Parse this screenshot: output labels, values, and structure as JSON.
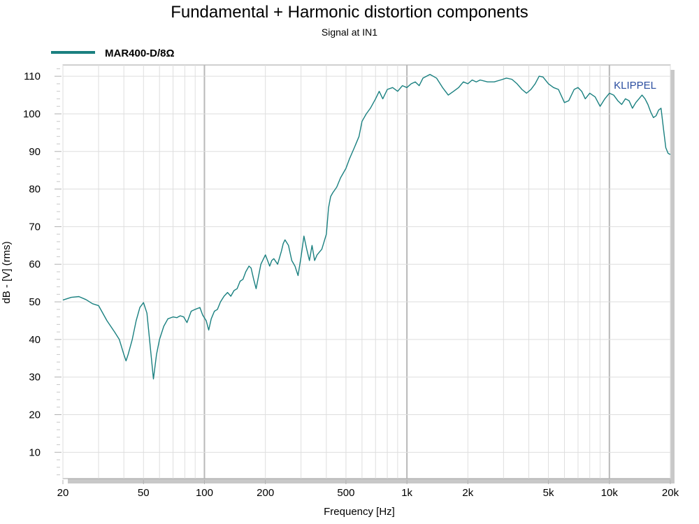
{
  "chart_data": {
    "type": "line",
    "title": "Fundamental + Harmonic distortion components",
    "subtitle": "Signal at IN1",
    "xlabel": "Frequency [Hz]",
    "ylabel": "dB - [V]  (rms)",
    "x_scale": "log",
    "xlim": [
      20,
      20000
    ],
    "ylim": [
      3,
      113
    ],
    "x_ticks": [
      20,
      50,
      100,
      200,
      500,
      1000,
      2000,
      5000,
      10000,
      20000
    ],
    "x_tick_labels": [
      "20",
      "50",
      "100",
      "200",
      "500",
      "1k",
      "2k",
      "5k",
      "10k",
      "20k"
    ],
    "y_ticks": [
      10,
      20,
      30,
      40,
      50,
      60,
      70,
      80,
      90,
      100,
      110
    ],
    "y_tick_labels": [
      "10",
      "20",
      "30",
      "40",
      "50",
      "60",
      "70",
      "80",
      "90",
      "100",
      "110"
    ],
    "grid": true,
    "legend_position": "top-left",
    "watermark": "KLIPPEL",
    "series": [
      {
        "name": "MAR400-D/8Ω",
        "color": "#1a8080",
        "x": [
          20,
          22,
          24,
          26,
          28,
          30,
          33,
          36,
          38,
          40,
          41,
          42,
          44,
          46,
          48,
          50,
          52,
          54,
          56,
          58,
          60,
          63,
          66,
          70,
          73,
          76,
          79,
          82,
          86,
          90,
          95,
          98,
          102,
          105,
          108,
          112,
          116,
          120,
          125,
          130,
          135,
          140,
          145,
          150,
          155,
          160,
          166,
          170,
          175,
          180,
          190,
          200,
          205,
          210,
          215,
          220,
          230,
          240,
          245,
          250,
          260,
          270,
          280,
          290,
          300,
          310,
          320,
          330,
          340,
          350,
          360,
          380,
          400,
          410,
          420,
          430,
          450,
          470,
          500,
          520,
          550,
          580,
          600,
          630,
          660,
          700,
          730,
          760,
          800,
          850,
          900,
          950,
          1000,
          1050,
          1100,
          1150,
          1200,
          1250,
          1300,
          1400,
          1500,
          1600,
          1700,
          1800,
          1900,
          2000,
          2100,
          2200,
          2300,
          2500,
          2700,
          2900,
          3100,
          3300,
          3500,
          3700,
          3900,
          4100,
          4300,
          4500,
          4700,
          5000,
          5300,
          5600,
          6000,
          6300,
          6700,
          7000,
          7300,
          7600,
          8000,
          8500,
          9000,
          9500,
          10000,
          10500,
          11000,
          11500,
          12000,
          12500,
          13000,
          13500,
          14000,
          14500,
          15000,
          15500,
          16000,
          16500,
          17000,
          17500,
          18000,
          18500,
          19000,
          19500,
          20000
        ],
        "y": [
          50.5,
          51.2,
          51.4,
          50.6,
          49.5,
          49.0,
          45.0,
          42.0,
          40.0,
          36.0,
          34.3,
          36.0,
          40.0,
          45.0,
          48.5,
          49.8,
          47.0,
          38.0,
          29.5,
          36.0,
          40.0,
          43.5,
          45.5,
          46.0,
          45.8,
          46.3,
          46.0,
          44.5,
          47.5,
          48.0,
          48.5,
          46.5,
          45.0,
          42.5,
          45.5,
          47.5,
          48.0,
          50.0,
          51.5,
          52.5,
          51.5,
          53.0,
          53.5,
          55.5,
          56.0,
          58.0,
          59.5,
          59.0,
          56.0,
          53.5,
          60.0,
          62.5,
          61.0,
          59.5,
          61.0,
          61.5,
          60.0,
          63.5,
          65.5,
          66.5,
          65.0,
          61.0,
          59.5,
          57.0,
          62.0,
          67.5,
          64.0,
          61.0,
          65.0,
          61.0,
          62.5,
          64.0,
          68.0,
          75.0,
          78.0,
          79.0,
          80.5,
          83.0,
          85.5,
          88.0,
          91.0,
          94.0,
          98.0,
          100.0,
          101.5,
          104.0,
          106.0,
          104.0,
          106.5,
          107.0,
          106.0,
          107.5,
          107.0,
          108.0,
          108.5,
          107.5,
          109.5,
          110.0,
          110.5,
          109.5,
          107.0,
          105.0,
          106.0,
          107.0,
          108.5,
          108.0,
          109.0,
          108.5,
          109.0,
          108.5,
          108.5,
          109.0,
          109.5,
          109.2,
          108.0,
          106.5,
          105.5,
          106.5,
          108.0,
          110.0,
          109.8,
          108.0,
          107.0,
          106.5,
          103.0,
          103.5,
          106.5,
          107.0,
          106.0,
          104.0,
          105.5,
          104.5,
          102.0,
          104.0,
          105.5,
          105.0,
          103.5,
          102.5,
          104.0,
          103.5,
          101.5,
          103.0,
          104.0,
          105.0,
          104.0,
          102.5,
          100.5,
          99.0,
          99.5,
          101.0,
          101.5,
          96.0,
          91.0,
          89.5,
          89.2
        ]
      }
    ]
  }
}
